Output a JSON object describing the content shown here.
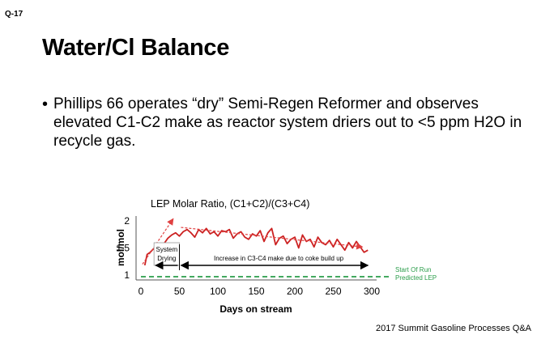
{
  "slide": {
    "question_number": "Q-17",
    "title": "Water/Cl Balance",
    "bullets": [
      "Phillips 66 operates “dry” Semi-Regen Reformer and observes elevated C1-C2 make as reactor system driers out to <5 ppm H2O in recycle gas."
    ],
    "footer": "2017 Summit Gasoline Processes Q&A"
  },
  "chart_data": {
    "type": "line",
    "title": "LEP Molar Ratio, (C1+C2)/(C3+C4)",
    "xlabel": "Days on stream",
    "ylabel": "mol/mol",
    "xlim": [
      0,
      300
    ],
    "ylim": [
      1,
      2
    ],
    "x_ticks": [
      "0",
      "50",
      "100",
      "150",
      "200",
      "250",
      "300"
    ],
    "y_ticks": [
      "1",
      "1.5",
      "2"
    ],
    "series": [
      {
        "color": "#cc2222",
        "x": [
          5,
          8,
          12,
          16,
          20,
          25,
          30,
          35,
          40,
          45,
          50,
          55,
          60,
          65,
          70,
          75,
          80,
          85,
          90,
          95,
          100,
          105,
          110,
          115,
          120,
          125,
          130,
          135,
          140,
          145,
          150,
          155,
          160,
          165,
          170,
          175,
          180,
          185,
          190,
          195,
          200,
          205,
          210,
          215,
          220,
          225,
          230,
          235,
          240,
          245,
          250,
          255,
          260,
          265,
          270,
          275,
          280,
          285,
          290,
          295
        ],
        "y": [
          1.18,
          1.38,
          1.42,
          1.48,
          1.52,
          1.55,
          1.58,
          1.68,
          1.74,
          1.78,
          1.72,
          1.8,
          1.84,
          1.78,
          1.7,
          1.84,
          1.78,
          1.86,
          1.76,
          1.8,
          1.72,
          1.82,
          1.8,
          1.84,
          1.68,
          1.76,
          1.8,
          1.7,
          1.66,
          1.76,
          1.72,
          1.82,
          1.62,
          1.78,
          1.86,
          1.56,
          1.68,
          1.72,
          1.58,
          1.66,
          1.7,
          1.5,
          1.74,
          1.62,
          1.66,
          1.52,
          1.7,
          1.6,
          1.56,
          1.64,
          1.52,
          1.66,
          1.56,
          1.46,
          1.6,
          1.5,
          1.62,
          1.52,
          1.42,
          1.46
        ]
      },
      {
        "name": "Start Of Run Predicted LEP",
        "color": "#2a9d4a",
        "style": "dashed",
        "x": [
          0,
          300
        ],
        "y": [
          0.97,
          0.97
        ]
      }
    ],
    "annotations": {
      "series_label": [
        "Start Of Run",
        "Predicted LEP"
      ],
      "drying_label": [
        "System",
        "Drying"
      ],
      "drying_range": [
        17,
        50
      ],
      "coke_label": "Increase in C3-C4 make due to coke build up",
      "coke_range": [
        50,
        295
      ]
    }
  }
}
